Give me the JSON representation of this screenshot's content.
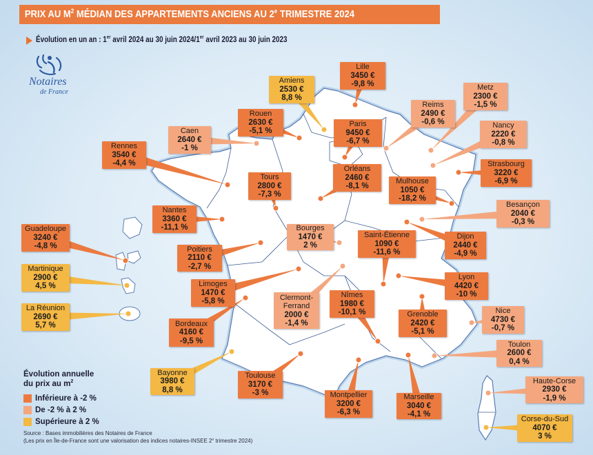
{
  "header": {
    "title_part1": "PRIX AU M",
    "title_sup1": "2",
    "title_part2": " MÉDIAN DES APPARTEMENTS ANCIENS AU 2",
    "title_sup2": "e",
    "title_part3": " TRIMESTRE 2024"
  },
  "subtitle": {
    "p1": "Évolution en un an : 1",
    "s1": "er",
    "p2": " avril 2024 au 30 juin 2024/1",
    "s2": "er",
    "p3": " avril 2023 au 30 juin 2023"
  },
  "logo": {
    "name": "Notaires",
    "tagline": "de France",
    "icon": "notaires-logo-icon"
  },
  "colors": {
    "below": "#ec7a3f",
    "stable": "#f4a77f",
    "above": "#f4b844",
    "title_bar": "#ea7a3e",
    "map_fill": "#ffffff",
    "map_border": "#5a7bb0"
  },
  "legend": {
    "title_line1": "Évolution annuelle",
    "title_line2": "du prix au m",
    "title_line2_sup": "2",
    "items": [
      {
        "label": "Inférieure à -2 %",
        "category": "below"
      },
      {
        "label": "De -2 % à 2 %",
        "category": "stable"
      },
      {
        "label": "Supérieure à 2 %",
        "category": "above"
      }
    ]
  },
  "cities": [
    {
      "name": "Lille",
      "price": "3450 €",
      "change": "-9,8 %",
      "category": "below"
    },
    {
      "name": "Amiens",
      "price": "2530 €",
      "change": "8,8 %",
      "category": "above"
    },
    {
      "name": "Rouen",
      "price": "2630 €",
      "change": "-5,1 %",
      "category": "below"
    },
    {
      "name": "Paris",
      "price": "9450 €",
      "change": "-6,7 %",
      "category": "below"
    },
    {
      "name": "Caen",
      "price": "2640 €",
      "change": "-1 %",
      "category": "stable"
    },
    {
      "name": "Reims",
      "price": "2490 €",
      "change": "-0,6 %",
      "category": "stable"
    },
    {
      "name": "Metz",
      "price": "2300 €",
      "change": "-1,5 %",
      "category": "stable"
    },
    {
      "name": "Nancy",
      "price": "2220 €",
      "change": "-0,8 %",
      "category": "stable"
    },
    {
      "name": "Strasbourg",
      "price": "3220 €",
      "change": "-6,9 %",
      "category": "below"
    },
    {
      "name": "Rennes",
      "price": "3540 €",
      "change": "-4,4 %",
      "category": "below"
    },
    {
      "name": "Orléans",
      "price": "2460 €",
      "change": "-8,1 %",
      "category": "below"
    },
    {
      "name": "Tours",
      "price": "2800 €",
      "change": "-7,3 %",
      "category": "below"
    },
    {
      "name": "Mulhouse",
      "price": "1050 €",
      "change": "-18,2 %",
      "category": "below"
    },
    {
      "name": "Besançon",
      "price": "2040 €",
      "change": "-0,3 %",
      "category": "stable"
    },
    {
      "name": "Nantes",
      "price": "3360 €",
      "change": "-11,1 %",
      "category": "below"
    },
    {
      "name": "Bourges",
      "price": "1470 €",
      "change": "2 %",
      "category": "stable"
    },
    {
      "name": "Saint-Étienne",
      "price": "1090 €",
      "change": "-11,6 %",
      "category": "below"
    },
    {
      "name": "Dijon",
      "price": "2440 €",
      "change": "-4,9 %",
      "category": "below"
    },
    {
      "name": "Guadeloupe",
      "price": "3240 €",
      "change": "-4,8 %",
      "category": "below"
    },
    {
      "name": "Poitiers",
      "price": "2110 €",
      "change": "-2,7 %",
      "category": "below"
    },
    {
      "name": "Martinique",
      "price": "2900 €",
      "change": "4,5 %",
      "category": "above"
    },
    {
      "name": "Lyon",
      "price": "4420 €",
      "change": "-10 %",
      "category": "below"
    },
    {
      "name": "Limoges",
      "price": "1470 €",
      "change": "-5,8 %",
      "category": "below"
    },
    {
      "name": "Clermont-Ferrand",
      "price": "2000 €",
      "change": "-1,4 %",
      "category": "stable"
    },
    {
      "name": "Nîmes",
      "price": "1980 €",
      "change": "-10,1 %",
      "category": "below"
    },
    {
      "name": "La Réunion",
      "price": "2690 €",
      "change": "5,7 %",
      "category": "above"
    },
    {
      "name": "Nice",
      "price": "4730 €",
      "change": "-0,7 %",
      "category": "stable"
    },
    {
      "name": "Grenoble",
      "price": "2420 €",
      "change": "-5,1 %",
      "category": "below"
    },
    {
      "name": "Bordeaux",
      "price": "4160 €",
      "change": "-9,5 %",
      "category": "below"
    },
    {
      "name": "Toulon",
      "price": "2600 €",
      "change": "0,4 %",
      "category": "stable"
    },
    {
      "name": "Bayonne",
      "price": "3980 €",
      "change": "8,8 %",
      "category": "above"
    },
    {
      "name": "Toulouse",
      "price": "3170 €",
      "change": "-3 %",
      "category": "below"
    },
    {
      "name": "Haute-Corse",
      "price": "2930 €",
      "change": "-1,9 %",
      "category": "stable"
    },
    {
      "name": "Montpellier",
      "price": "3200 €",
      "change": "-6,3 %",
      "category": "below"
    },
    {
      "name": "Marseille",
      "price": "3040 €",
      "change": "-4,1 %",
      "category": "below"
    },
    {
      "name": "Corse-du-Sud",
      "price": "4070 €",
      "change": "3 %",
      "category": "above"
    }
  ],
  "source": {
    "line1": "Source : Bases immobilières des Notaires de France",
    "line2_a": "(Les prix en Île-de-France sont une valorisation des indices notaires-INSEE 2",
    "line2_sup": "e",
    "line2_b": " trimestre 2024)"
  }
}
